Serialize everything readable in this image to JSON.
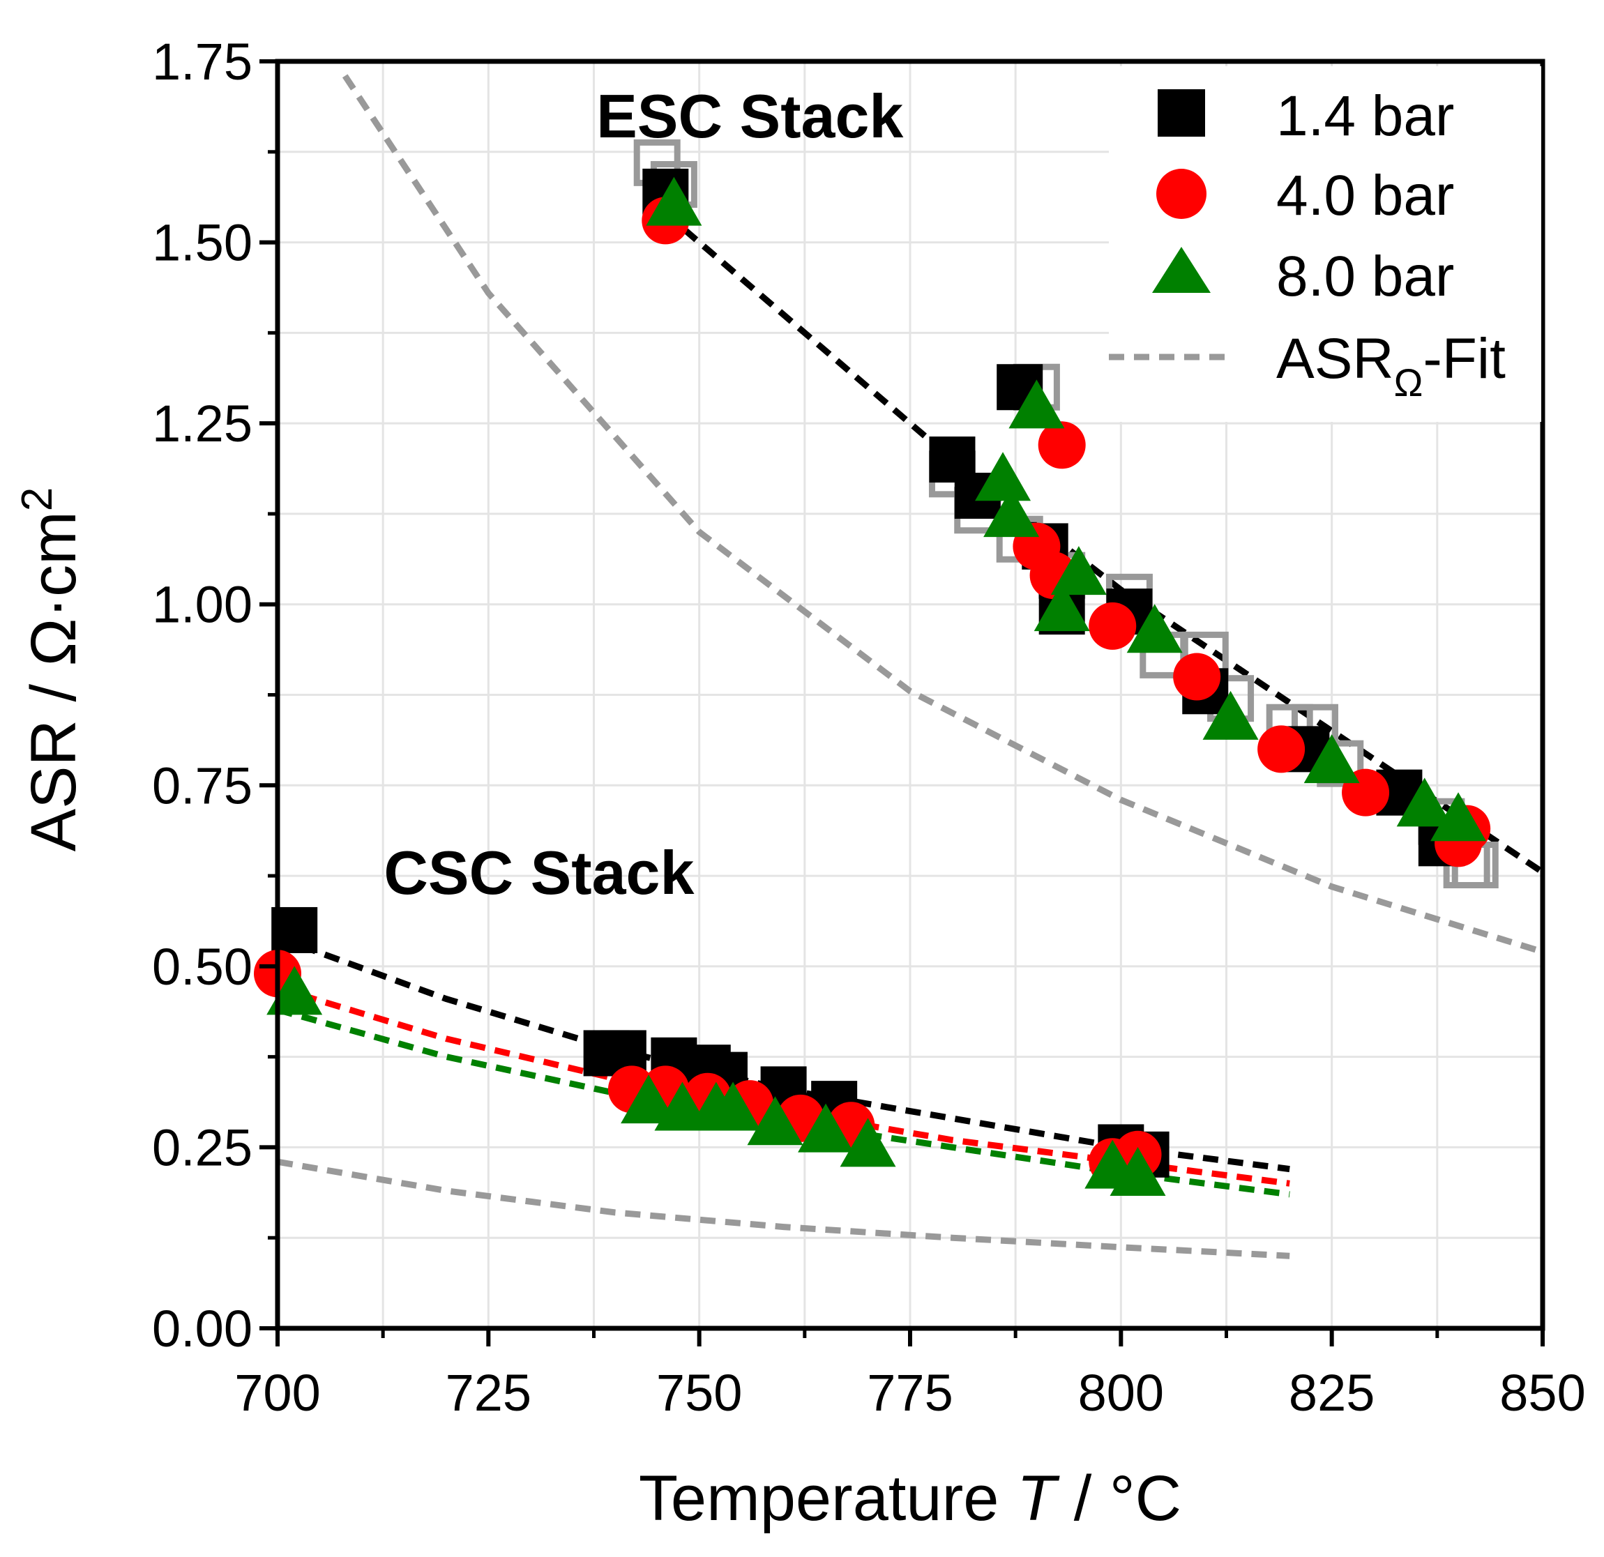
{
  "chart_data": {
    "type": "scatter",
    "xlabel": {
      "main": "Temperature ",
      "italic": "T",
      "unit": " / °C"
    },
    "ylabel": {
      "main": "ASR / Ω·cm",
      "superscript": "2"
    },
    "xlim": [
      700,
      850
    ],
    "ylim": [
      0,
      1.75
    ],
    "x_ticks": [
      "700",
      "725",
      "750",
      "775",
      "800",
      "825",
      "850"
    ],
    "x_tick_values": [
      700,
      725,
      750,
      775,
      800,
      825,
      850
    ],
    "y_ticks": [
      "0.00",
      "0.25",
      "0.50",
      "0.75",
      "1.00",
      "1.25",
      "1.50",
      "1.75"
    ],
    "y_tick_values": [
      0,
      0.25,
      0.5,
      0.75,
      1.0,
      1.25,
      1.5,
      1.75
    ],
    "grid": true,
    "annotations": [
      {
        "text": "ESC Stack",
        "x": 756,
        "y": 1.645
      },
      {
        "text": "CSC Stack",
        "x": 731,
        "y": 0.6
      }
    ],
    "legend": {
      "placement": "top-right",
      "entries": [
        {
          "label": "1.4 bar",
          "marker": "square",
          "color": "#000000"
        },
        {
          "label": "4.0 bar",
          "marker": "circle",
          "color": "#ff0000"
        },
        {
          "label": "8.0 bar",
          "marker": "triangle",
          "color": "#008000"
        },
        {
          "label_main": "ASR",
          "label_sub": "Ω",
          "label_tail": "-Fit",
          "marker": "dashed-line",
          "color": "#999999"
        }
      ]
    },
    "series": [
      {
        "name": "1.4 bar (ESC, hollow)",
        "marker": "square-open",
        "color": "#999999",
        "x": [
          745,
          747,
          790,
          780,
          783,
          788,
          791,
          793,
          801,
          805,
          810,
          813,
          820,
          823,
          826,
          838,
          841,
          842
        ],
        "y": [
          1.61,
          1.58,
          1.3,
          1.18,
          1.13,
          1.09,
          1.08,
          1.04,
          1.01,
          0.93,
          0.93,
          0.87,
          0.83,
          0.83,
          0.78,
          0.7,
          0.64,
          0.64
        ]
      },
      {
        "name": "1.4 bar (ESC)",
        "marker": "square",
        "color": "#000000",
        "x": [
          746,
          788,
          780,
          783,
          791,
          793,
          801,
          810,
          822,
          833,
          838
        ],
        "y": [
          1.57,
          1.3,
          1.2,
          1.15,
          1.08,
          0.99,
          0.99,
          0.88,
          0.8,
          0.74,
          0.67
        ]
      },
      {
        "name": "4.0 bar (ESC)",
        "marker": "circle",
        "color": "#ff0000",
        "x": [
          746,
          793,
          790,
          792,
          799,
          809,
          819,
          829,
          840,
          841
        ],
        "y": [
          1.53,
          1.22,
          1.08,
          1.04,
          0.97,
          0.9,
          0.8,
          0.74,
          0.67,
          0.69
        ]
      },
      {
        "name": "8.0 bar (ESC)",
        "marker": "triangle",
        "color": "#008000",
        "x": [
          747,
          790,
          786,
          787,
          795,
          793,
          804,
          813,
          825,
          836,
          840
        ],
        "y": [
          1.55,
          1.27,
          1.17,
          1.12,
          1.04,
          0.99,
          0.96,
          0.84,
          0.78,
          0.72,
          0.7
        ]
      },
      {
        "name": "1.4 bar (CSC)",
        "marker": "square",
        "color": "#000000",
        "x": [
          702,
          739,
          741,
          747,
          751,
          753,
          760,
          766,
          800,
          803
        ],
        "y": [
          0.55,
          0.38,
          0.38,
          0.37,
          0.36,
          0.35,
          0.33,
          0.31,
          0.25,
          0.24
        ]
      },
      {
        "name": "4.0 bar (CSC)",
        "marker": "circle",
        "color": "#ff0000",
        "x": [
          700,
          742,
          746,
          751,
          756,
          762,
          768,
          799,
          802
        ],
        "y": [
          0.49,
          0.33,
          0.33,
          0.32,
          0.31,
          0.29,
          0.28,
          0.23,
          0.24
        ]
      },
      {
        "name": "8.0 bar (CSC)",
        "marker": "triangle",
        "color": "#008000",
        "x": [
          702,
          744,
          748,
          752,
          754,
          759,
          765,
          770,
          799,
          802
        ],
        "y": [
          0.46,
          0.31,
          0.3,
          0.3,
          0.3,
          0.28,
          0.27,
          0.25,
          0.22,
          0.21
        ]
      }
    ],
    "fit_lines": [
      {
        "name": "ESC fit",
        "color": "#000000",
        "dashed": true,
        "x": [
          746,
          780,
          800,
          850
        ],
        "y": [
          1.54,
          1.2,
          1.02,
          0.63
        ]
      },
      {
        "name": "CSC fit 1.4 bar",
        "color": "#000000",
        "dashed": true,
        "x": [
          700,
          720,
          740,
          760,
          780,
          800,
          820
        ],
        "y": [
          0.54,
          0.455,
          0.385,
          0.33,
          0.29,
          0.25,
          0.22
        ]
      },
      {
        "name": "CSC fit 4.0 bar",
        "color": "#ff0000",
        "dashed": true,
        "x": [
          700,
          720,
          740,
          760,
          780,
          800,
          820
        ],
        "y": [
          0.47,
          0.4,
          0.345,
          0.3,
          0.26,
          0.23,
          0.2
        ]
      },
      {
        "name": "CSC fit 8.0 bar",
        "color": "#008000",
        "dashed": true,
        "x": [
          700,
          720,
          740,
          760,
          780,
          800,
          820
        ],
        "y": [
          0.44,
          0.375,
          0.325,
          0.285,
          0.25,
          0.215,
          0.185
        ]
      },
      {
        "name": "ASR-Ohm fit ESC",
        "color": "#999999",
        "dashed": true,
        "x": [
          708,
          725,
          750,
          775,
          800,
          825,
          850
        ],
        "y": [
          1.73,
          1.43,
          1.1,
          0.88,
          0.73,
          0.61,
          0.52
        ]
      },
      {
        "name": "ASR-Ohm fit CSC",
        "color": "#999999",
        "dashed": true,
        "x": [
          700,
          720,
          740,
          760,
          780,
          800,
          820
        ],
        "y": [
          0.23,
          0.19,
          0.16,
          0.14,
          0.125,
          0.112,
          0.1
        ]
      }
    ]
  }
}
